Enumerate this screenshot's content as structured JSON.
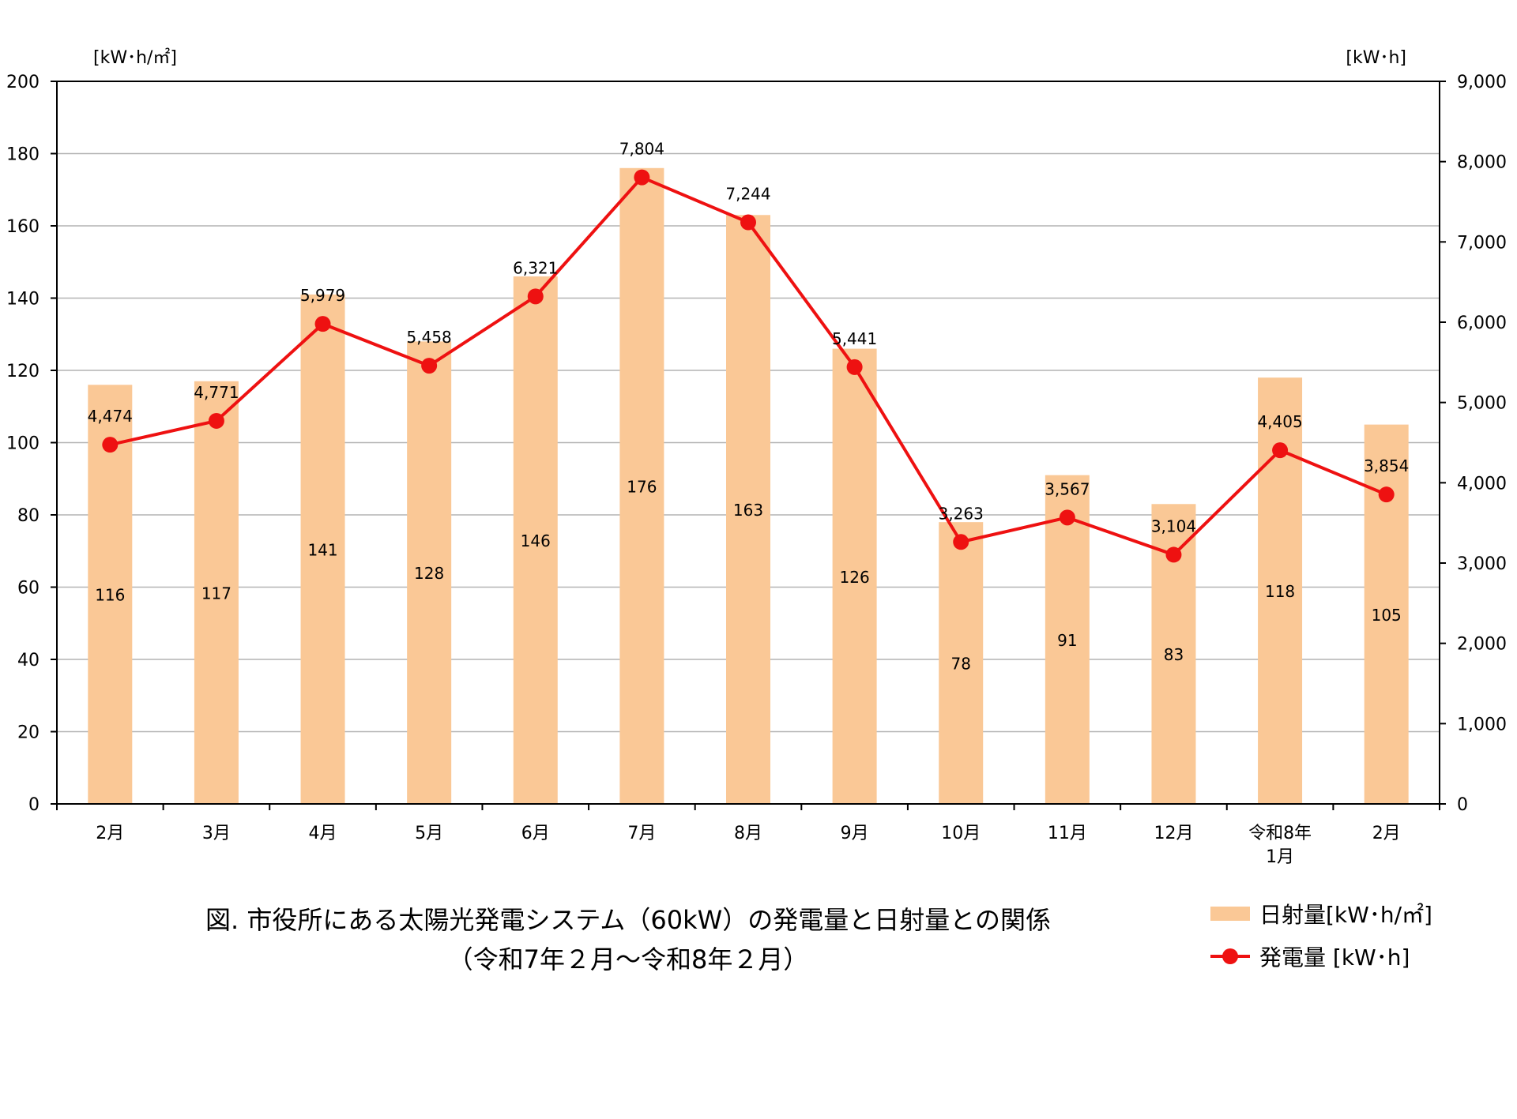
{
  "chart_data": {
    "type": "bar",
    "categories": [
      "2月",
      "3月",
      "4月",
      "5月",
      "6月",
      "7月",
      "8月",
      "9月",
      "10月",
      "11月",
      "12月",
      "令和8年\n1月",
      "2月"
    ],
    "series": [
      {
        "name": "日射量[kW･h/㎡]",
        "type": "bar",
        "axis": "left",
        "values": [
          116,
          117,
          141,
          128,
          146,
          176,
          163,
          126,
          78,
          91,
          83,
          118,
          105
        ],
        "color": "#fac896"
      },
      {
        "name": "発電量 [kW･h]",
        "type": "line",
        "axis": "right",
        "values": [
          4474,
          4771,
          5979,
          5458,
          6321,
          7804,
          7244,
          5441,
          3263,
          3567,
          3104,
          4405,
          3854
        ],
        "labels": [
          "4,474",
          "4,771",
          "5,979",
          "5,458",
          "6,321",
          "7,804",
          "7,244",
          "5,441",
          "3,263",
          "3,567",
          "3,104",
          "4,405",
          "3,854"
        ],
        "color": "#ee1111"
      }
    ],
    "ylabel_left": "[kW･h/㎡]",
    "ylabel_right": "[kW･h]",
    "ylim_left": [
      0,
      200
    ],
    "ylim_right": [
      0,
      9000
    ],
    "yticks_left": [
      "0",
      "20",
      "40",
      "60",
      "80",
      "100",
      "120",
      "140",
      "160",
      "180",
      "200"
    ],
    "yticks_right": [
      "0",
      "1,000",
      "2,000",
      "3,000",
      "4,000",
      "5,000",
      "6,000",
      "7,000",
      "8,000",
      "9,000"
    ],
    "grid": true,
    "legend_position": "bottom-right"
  },
  "caption": {
    "line1": "図. 市役所にある太陽光発電システム（60kW）の発電量と日射量との関係",
    "line2": "（令和7年２月～令和8年２月）"
  },
  "legend": {
    "bar_label": "日射量[kW･h/㎡]",
    "line_label": "発電量 [kW･h]"
  }
}
